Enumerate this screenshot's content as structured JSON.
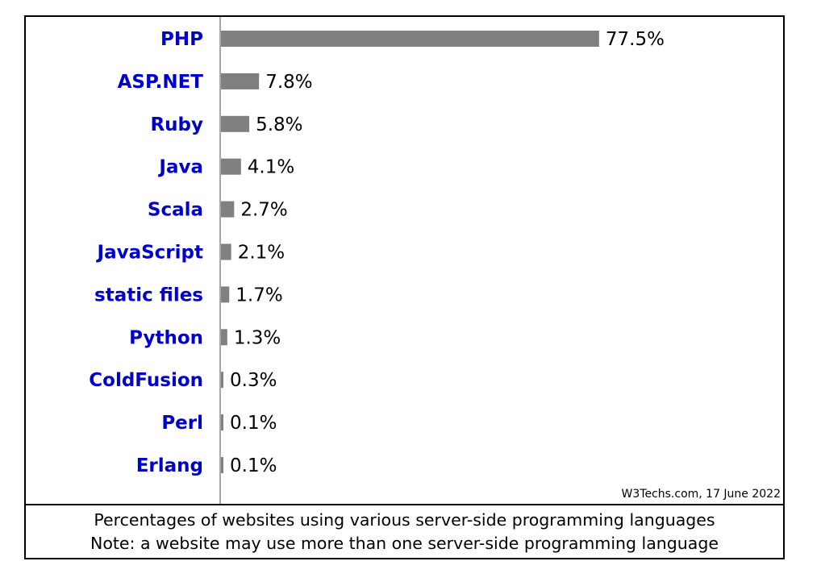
{
  "chart_data": {
    "type": "bar",
    "orientation": "horizontal",
    "categories": [
      "PHP",
      "ASP.NET",
      "Ruby",
      "Java",
      "Scala",
      "JavaScript",
      "static files",
      "Python",
      "ColdFusion",
      "Perl",
      "Erlang"
    ],
    "values": [
      77.5,
      7.8,
      5.8,
      4.1,
      2.7,
      2.1,
      1.7,
      1.3,
      0.3,
      0.1,
      0.1
    ],
    "value_labels": [
      "77.5%",
      "7.8%",
      "5.8%",
      "4.1%",
      "2.7%",
      "2.1%",
      "1.7%",
      "1.3%",
      "0.3%",
      "0.1%",
      "0.1%"
    ],
    "xlim": [
      0,
      100
    ],
    "grid": false,
    "legend": "none",
    "bar_color": "#808080",
    "label_color": "#0000cc",
    "axis_color": "#888888"
  },
  "source": "W3Techs.com, 17 June 2022",
  "caption": {
    "line1": "Percentages of websites using various server-side programming languages",
    "line2": "Note: a website may use more than one server-side programming language"
  }
}
